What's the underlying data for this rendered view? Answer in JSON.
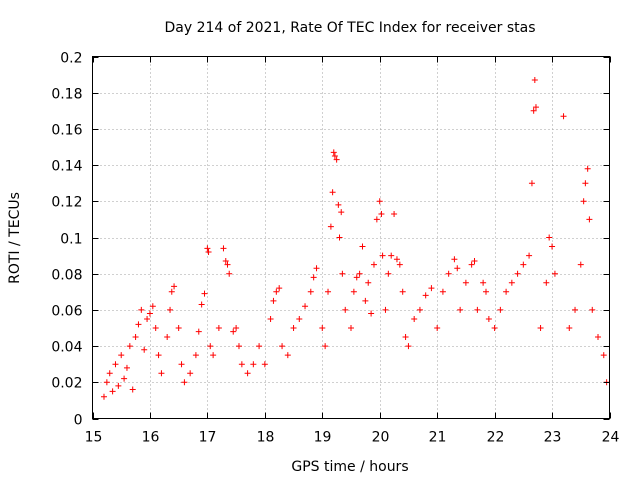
{
  "chart_data": {
    "type": "scatter",
    "title": "Day 214 of 2021, Rate Of TEC Index for receiver stas",
    "xlabel": "GPS time / hours",
    "ylabel": "ROTI / TECUs",
    "xlim": [
      15,
      24
    ],
    "ylim": [
      0,
      0.2
    ],
    "x_ticks": [
      15,
      16,
      17,
      18,
      19,
      20,
      21,
      22,
      23,
      24
    ],
    "y_ticks": [
      0,
      0.02,
      0.04,
      0.06,
      0.08,
      0.1,
      0.12,
      0.14,
      0.16,
      0.18,
      0.2
    ],
    "x_tick_labels": [
      "15",
      "16",
      "17",
      "18",
      "19",
      "20",
      "21",
      "22",
      "23",
      "24"
    ],
    "y_tick_labels": [
      "0",
      "0.02",
      "0.04",
      "0.06",
      "0.08",
      "0.1",
      "0.12",
      "0.14",
      "0.16",
      "0.18",
      "0.2"
    ],
    "grid": true,
    "marker": "plus",
    "color": "#ff0000",
    "series": [
      {
        "name": "ROTI",
        "points": [
          [
            15.2,
            0.012
          ],
          [
            15.25,
            0.02
          ],
          [
            15.3,
            0.025
          ],
          [
            15.35,
            0.015
          ],
          [
            15.4,
            0.03
          ],
          [
            15.45,
            0.018
          ],
          [
            15.5,
            0.035
          ],
          [
            15.55,
            0.022
          ],
          [
            15.6,
            0.028
          ],
          [
            15.65,
            0.04
          ],
          [
            15.7,
            0.016
          ],
          [
            15.75,
            0.045
          ],
          [
            15.8,
            0.052
          ],
          [
            15.85,
            0.06
          ],
          [
            15.9,
            0.038
          ],
          [
            15.95,
            0.055
          ],
          [
            16.0,
            0.058
          ],
          [
            16.05,
            0.062
          ],
          [
            16.1,
            0.05
          ],
          [
            16.15,
            0.035
          ],
          [
            16.2,
            0.025
          ],
          [
            16.3,
            0.045
          ],
          [
            16.35,
            0.06
          ],
          [
            16.38,
            0.07
          ],
          [
            16.42,
            0.073
          ],
          [
            16.5,
            0.05
          ],
          [
            16.55,
            0.03
          ],
          [
            16.6,
            0.02
          ],
          [
            16.7,
            0.025
          ],
          [
            16.8,
            0.035
          ],
          [
            16.85,
            0.048
          ],
          [
            16.9,
            0.063
          ],
          [
            16.95,
            0.069
          ],
          [
            17.0,
            0.094
          ],
          [
            17.02,
            0.092
          ],
          [
            17.05,
            0.04
          ],
          [
            17.1,
            0.035
          ],
          [
            17.2,
            0.05
          ],
          [
            17.28,
            0.094
          ],
          [
            17.32,
            0.087
          ],
          [
            17.35,
            0.085
          ],
          [
            17.38,
            0.08
          ],
          [
            17.45,
            0.048
          ],
          [
            17.5,
            0.05
          ],
          [
            17.55,
            0.04
          ],
          [
            17.6,
            0.03
          ],
          [
            17.7,
            0.025
          ],
          [
            17.8,
            0.03
          ],
          [
            17.9,
            0.04
          ],
          [
            18.0,
            0.03
          ],
          [
            18.1,
            0.055
          ],
          [
            18.15,
            0.065
          ],
          [
            18.2,
            0.07
          ],
          [
            18.25,
            0.072
          ],
          [
            18.3,
            0.04
          ],
          [
            18.4,
            0.035
          ],
          [
            18.5,
            0.05
          ],
          [
            18.6,
            0.055
          ],
          [
            18.7,
            0.062
          ],
          [
            18.8,
            0.07
          ],
          [
            18.85,
            0.078
          ],
          [
            18.9,
            0.083
          ],
          [
            19.0,
            0.05
          ],
          [
            19.05,
            0.04
          ],
          [
            19.1,
            0.07
          ],
          [
            19.15,
            0.106
          ],
          [
            19.18,
            0.125
          ],
          [
            19.2,
            0.147
          ],
          [
            19.22,
            0.145
          ],
          [
            19.25,
            0.143
          ],
          [
            19.28,
            0.118
          ],
          [
            19.3,
            0.1
          ],
          [
            19.33,
            0.114
          ],
          [
            19.35,
            0.08
          ],
          [
            19.4,
            0.06
          ],
          [
            19.5,
            0.05
          ],
          [
            19.55,
            0.07
          ],
          [
            19.6,
            0.078
          ],
          [
            19.65,
            0.08
          ],
          [
            19.7,
            0.095
          ],
          [
            19.75,
            0.065
          ],
          [
            19.8,
            0.075
          ],
          [
            19.85,
            0.058
          ],
          [
            19.9,
            0.085
          ],
          [
            19.95,
            0.11
          ],
          [
            20.0,
            0.12
          ],
          [
            20.03,
            0.113
          ],
          [
            20.05,
            0.09
          ],
          [
            20.1,
            0.06
          ],
          [
            20.15,
            0.08
          ],
          [
            20.2,
            0.09
          ],
          [
            20.25,
            0.113
          ],
          [
            20.3,
            0.088
          ],
          [
            20.35,
            0.085
          ],
          [
            20.4,
            0.07
          ],
          [
            20.45,
            0.045
          ],
          [
            20.5,
            0.04
          ],
          [
            20.6,
            0.055
          ],
          [
            20.7,
            0.06
          ],
          [
            20.8,
            0.068
          ],
          [
            20.9,
            0.072
          ],
          [
            21.0,
            0.05
          ],
          [
            21.1,
            0.07
          ],
          [
            21.2,
            0.08
          ],
          [
            21.3,
            0.088
          ],
          [
            21.35,
            0.083
          ],
          [
            21.4,
            0.06
          ],
          [
            21.5,
            0.075
          ],
          [
            21.6,
            0.085
          ],
          [
            21.65,
            0.087
          ],
          [
            21.7,
            0.06
          ],
          [
            21.8,
            0.075
          ],
          [
            21.85,
            0.07
          ],
          [
            21.9,
            0.055
          ],
          [
            22.0,
            0.05
          ],
          [
            22.1,
            0.06
          ],
          [
            22.2,
            0.07
          ],
          [
            22.3,
            0.075
          ],
          [
            22.4,
            0.08
          ],
          [
            22.5,
            0.085
          ],
          [
            22.6,
            0.09
          ],
          [
            22.65,
            0.13
          ],
          [
            22.68,
            0.17
          ],
          [
            22.7,
            0.187
          ],
          [
            22.72,
            0.172
          ],
          [
            22.8,
            0.05
          ],
          [
            22.9,
            0.075
          ],
          [
            22.95,
            0.1
          ],
          [
            23.0,
            0.095
          ],
          [
            23.05,
            0.08
          ],
          [
            23.2,
            0.167
          ],
          [
            23.3,
            0.05
          ],
          [
            23.4,
            0.06
          ],
          [
            23.5,
            0.085
          ],
          [
            23.55,
            0.12
          ],
          [
            23.58,
            0.13
          ],
          [
            23.62,
            0.138
          ],
          [
            23.65,
            0.11
          ],
          [
            23.7,
            0.06
          ],
          [
            23.8,
            0.045
          ],
          [
            23.9,
            0.035
          ],
          [
            23.95,
            0.02
          ]
        ]
      }
    ]
  }
}
